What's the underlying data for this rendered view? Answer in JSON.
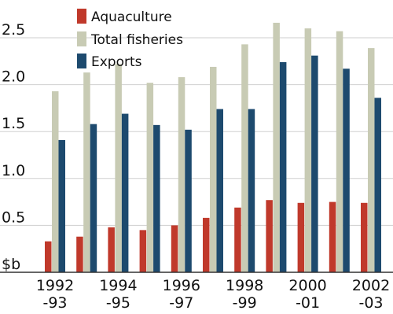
{
  "chart_data": {
    "type": "bar",
    "title": "",
    "xlabel": "",
    "ylabel": "",
    "unit_label": "$b",
    "categories": [
      [
        "1992",
        "-93"
      ],
      [
        "",
        ""
      ],
      [
        "1994",
        "-95"
      ],
      [
        "",
        ""
      ],
      [
        "1996",
        "-97"
      ],
      [
        "",
        ""
      ],
      [
        "1998",
        "-99"
      ],
      [
        "",
        ""
      ],
      [
        "2000",
        "-01"
      ],
      [
        "",
        ""
      ],
      [
        "2002",
        "-03"
      ]
    ],
    "yticks": [
      "0.5",
      "1.0",
      "1.5",
      "2.0",
      "2.5"
    ],
    "ytick_values": [
      0.5,
      1.0,
      1.5,
      2.0,
      2.5
    ],
    "ylim": [
      0,
      2.8
    ],
    "grid": "horizontal",
    "legend_position": "top-left",
    "series": [
      {
        "name": "Aquaculture",
        "color": "#c0392b",
        "values": [
          0.33,
          0.38,
          0.48,
          0.45,
          0.5,
          0.58,
          0.69,
          0.77,
          0.74,
          0.75,
          0.74
        ]
      },
      {
        "name": "Total fisheries",
        "color": "#c8cbb4",
        "values": [
          1.93,
          2.13,
          2.22,
          2.02,
          2.08,
          2.19,
          2.43,
          2.66,
          2.6,
          2.57,
          2.39
        ]
      },
      {
        "name": "Exports",
        "color": "#1d4a6e",
        "values": [
          1.41,
          1.58,
          1.69,
          1.57,
          1.52,
          1.74,
          1.74,
          2.24,
          2.31,
          2.17,
          1.86
        ]
      }
    ]
  }
}
